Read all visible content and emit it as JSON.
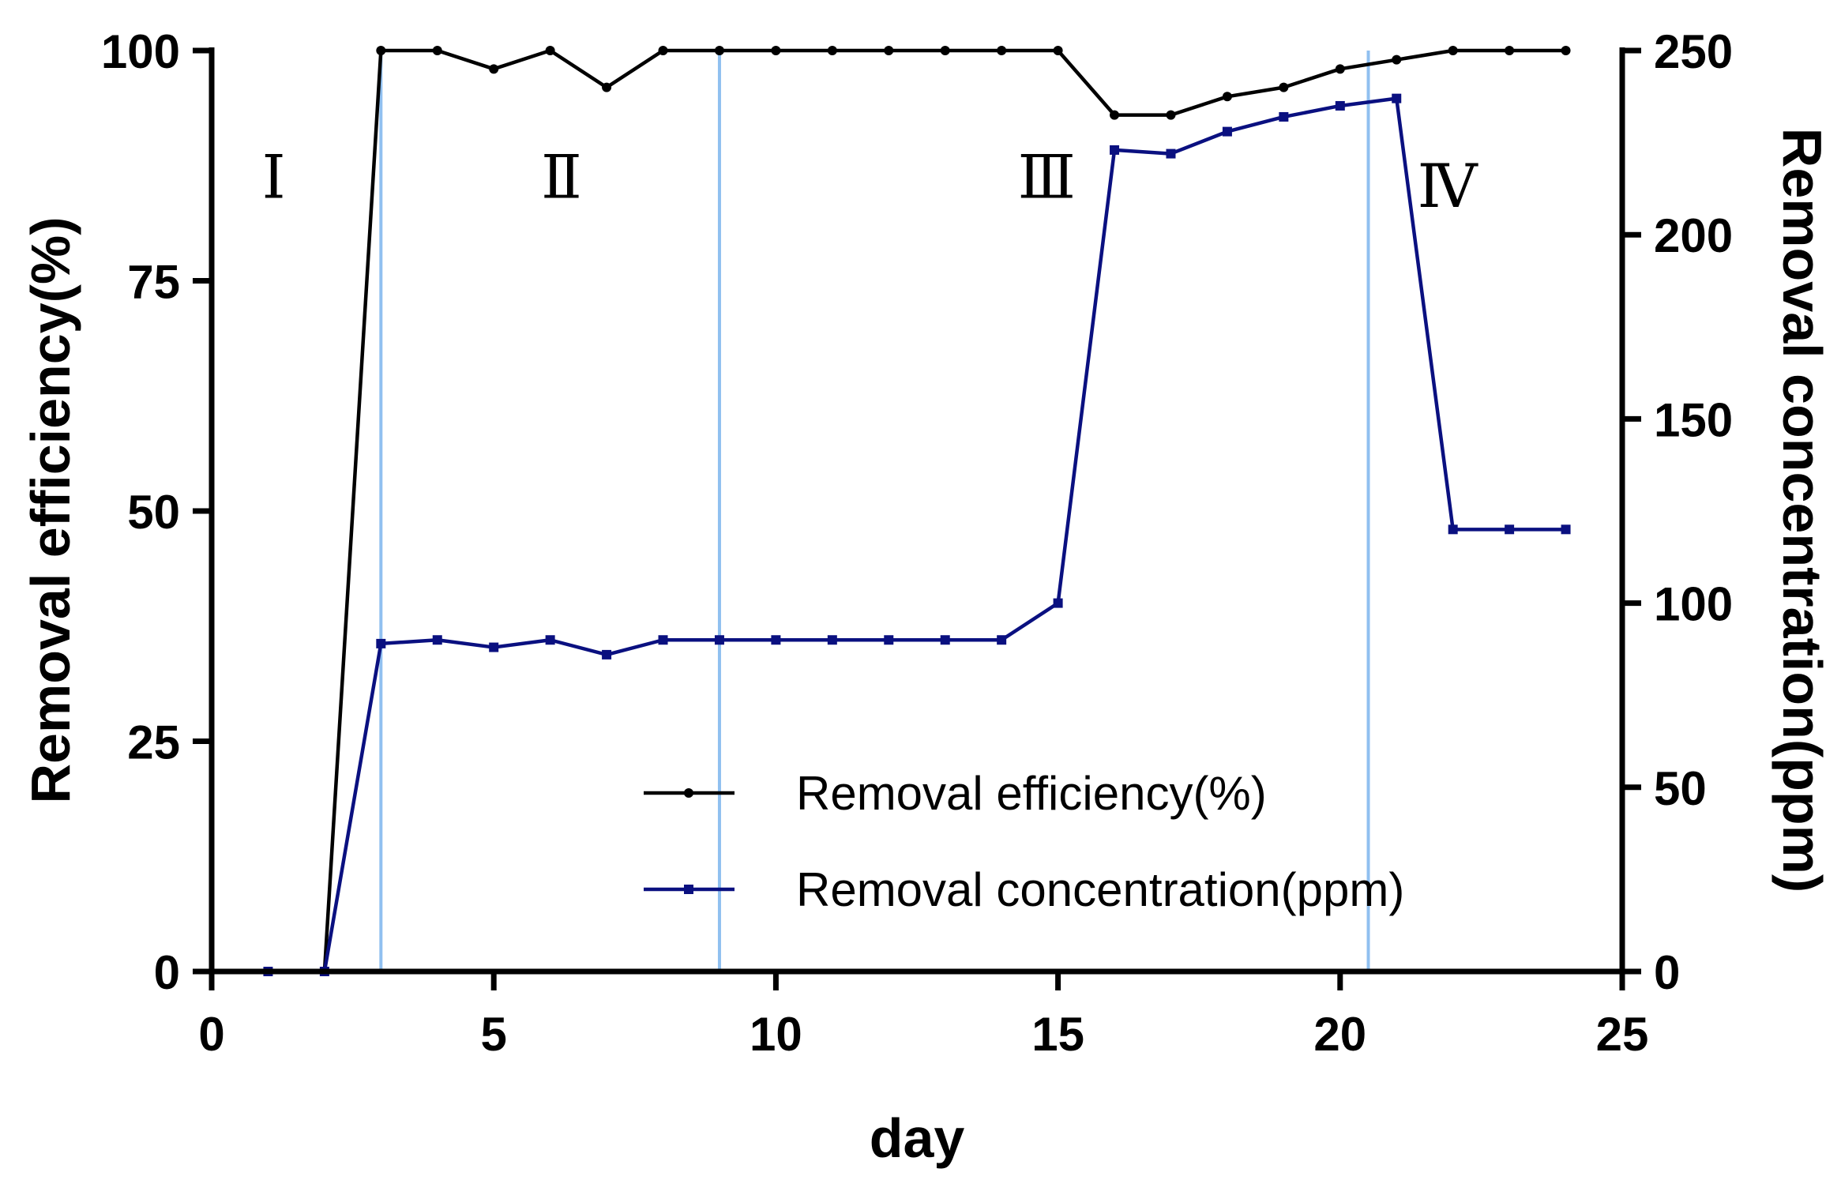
{
  "chart_data": {
    "type": "line",
    "title": "",
    "xlabel": "day",
    "ylabel_left": "Removal efficiency(%)",
    "ylabel_right": "Removal concentration(ppm)",
    "xlim": [
      0,
      25
    ],
    "ylim_left": [
      0,
      100
    ],
    "ylim_right": [
      0,
      250
    ],
    "x_ticks": [
      0,
      5,
      10,
      15,
      20,
      25
    ],
    "x_tick_labels": [
      "0",
      "5",
      "10",
      "15",
      "20",
      "25"
    ],
    "y_left_ticks": [
      0,
      25,
      50,
      75,
      100
    ],
    "y_left_tick_labels": [
      "0",
      "25",
      "50",
      "75",
      "100"
    ],
    "y_right_ticks": [
      0,
      50,
      100,
      150,
      200,
      250
    ],
    "y_right_tick_labels": [
      "0",
      "50",
      "100",
      "150",
      "200",
      "250"
    ],
    "grid": false,
    "legend_position": "bottom-center",
    "vertical_lines": [
      3,
      9,
      20.5
    ],
    "vertical_line_color": "#90c0f0",
    "phase_labels": [
      {
        "text": "Ⅰ",
        "x": 1.1,
        "y": 84
      },
      {
        "text": "Ⅱ",
        "x": 6.2,
        "y": 84
      },
      {
        "text": "Ⅲ",
        "x": 14.8,
        "y": 84
      },
      {
        "text": "Ⅳ",
        "x": 21.9,
        "y": 83
      }
    ],
    "series": [
      {
        "name": "Removal efficiency(%)",
        "axis": "left",
        "color": "#000000",
        "marker": "circle",
        "x": [
          1,
          2,
          3,
          4,
          5,
          6,
          7,
          8,
          9,
          10,
          11,
          12,
          13,
          14,
          15,
          16,
          17,
          18,
          19,
          20,
          21,
          22,
          23,
          24
        ],
        "values": [
          0,
          0,
          100,
          100,
          98,
          100,
          96,
          100,
          100,
          100,
          100,
          100,
          100,
          100,
          100,
          93,
          93,
          95,
          96,
          98,
          99,
          100,
          100,
          100
        ]
      },
      {
        "name": "Removal concentration(ppm)",
        "axis": "right",
        "color": "#0a1080",
        "marker": "square",
        "x": [
          1,
          2,
          3,
          4,
          5,
          6,
          7,
          8,
          9,
          10,
          11,
          12,
          13,
          14,
          15,
          16,
          17,
          18,
          19,
          20,
          21,
          22,
          23,
          24
        ],
        "values": [
          0,
          0,
          89,
          90,
          88,
          90,
          86,
          90,
          90,
          90,
          90,
          90,
          90,
          90,
          100,
          223,
          222,
          228,
          232,
          235,
          237,
          120,
          120,
          120
        ]
      }
    ]
  }
}
